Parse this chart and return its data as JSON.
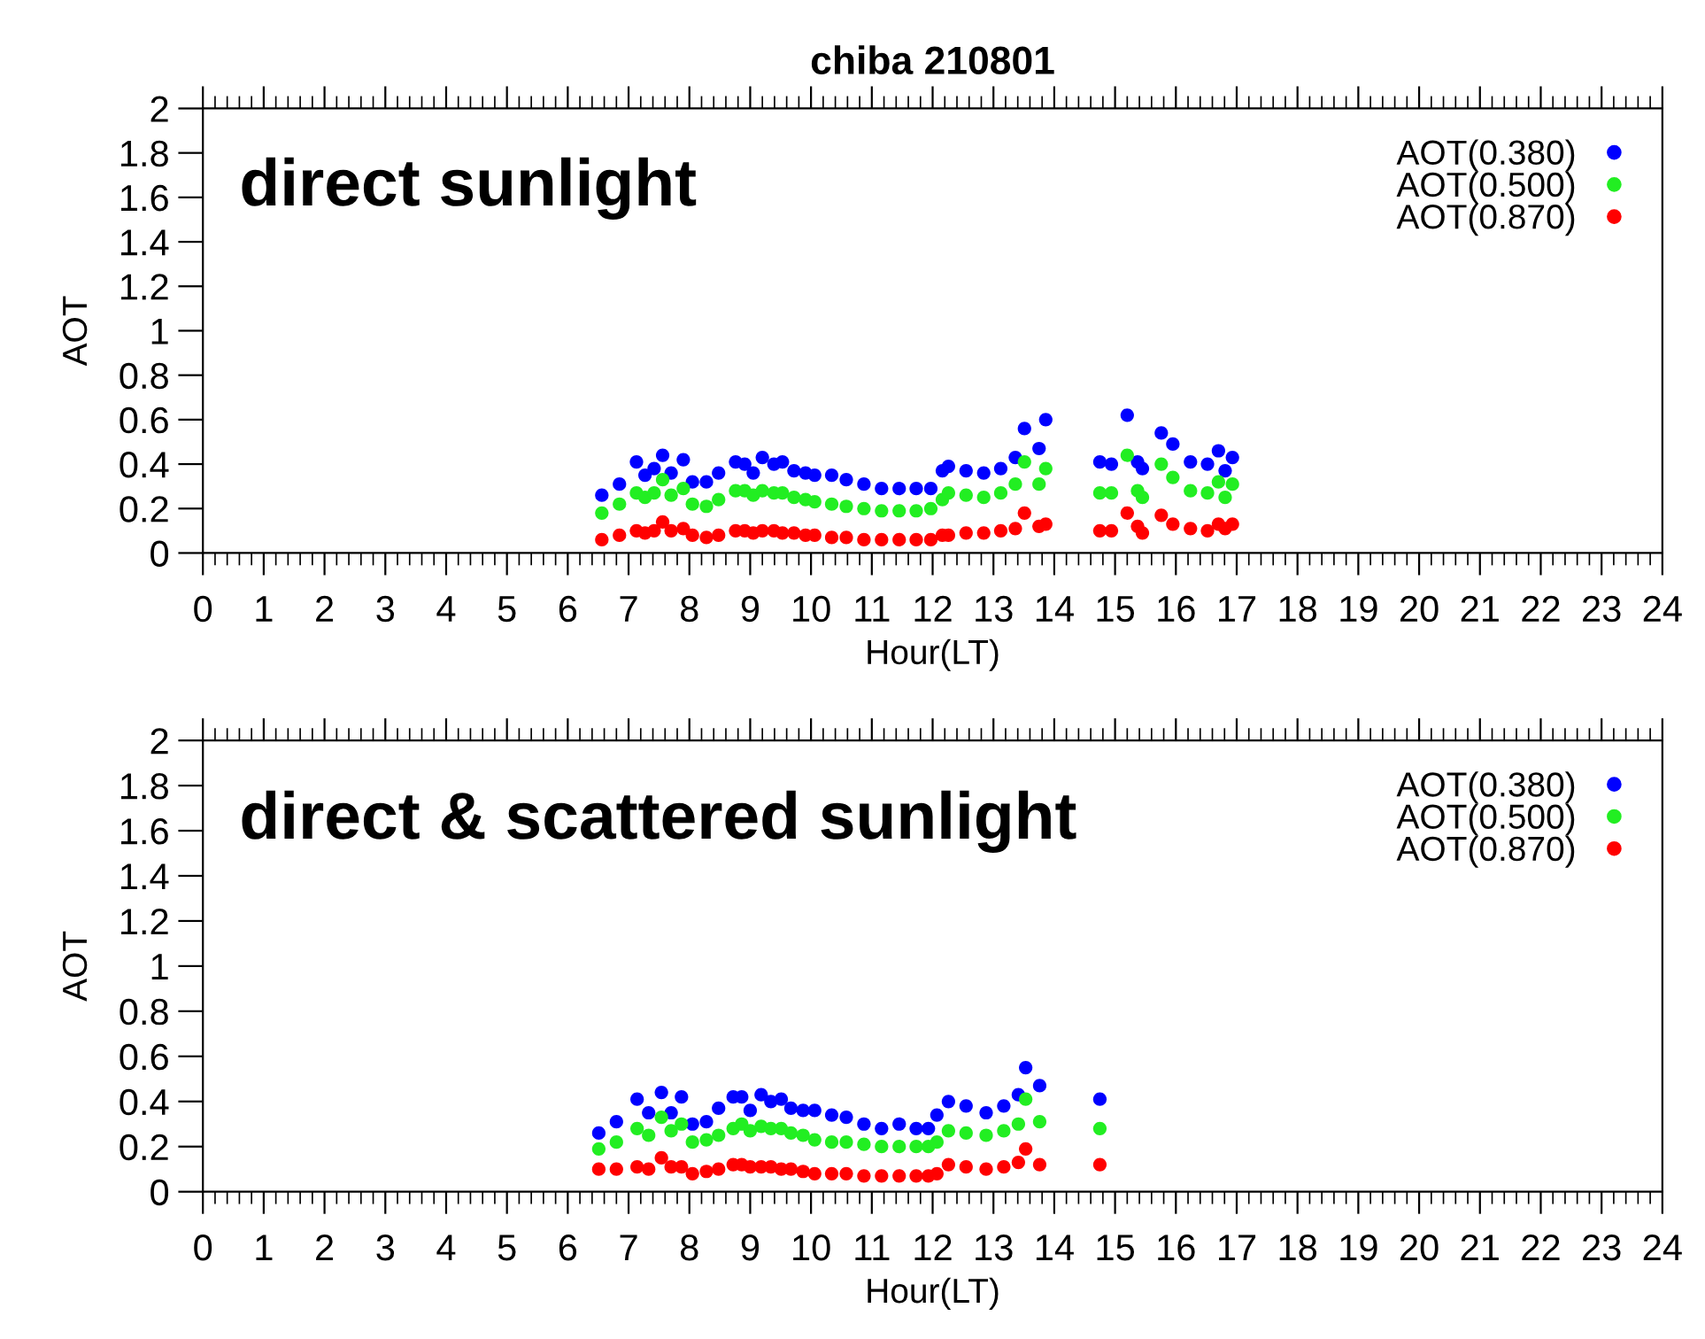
{
  "chart_data": [
    {
      "type": "scatter",
      "title": "chiba 210801",
      "xlabel": "Hour(LT)",
      "ylabel": "AOT",
      "annotations": [
        "direct sunlight"
      ],
      "x": [
        6.56,
        6.85,
        7.13,
        7.27,
        7.42,
        7.56,
        7.7,
        7.9,
        8.05,
        8.28,
        8.48,
        8.76,
        8.91,
        9.05,
        9.2,
        9.39,
        9.53,
        9.72,
        9.91,
        10.06,
        10.34,
        10.58,
        10.87,
        11.16,
        11.45,
        11.73,
        11.97,
        12.16,
        12.26,
        12.55,
        12.84,
        13.12,
        13.36,
        13.51,
        13.75,
        13.86,
        14.75,
        14.94,
        15.2,
        15.37,
        15.45,
        15.76,
        15.95,
        16.24,
        16.52,
        16.7,
        16.81,
        16.93
      ],
      "series": [
        {
          "name": "AOT(0.380)",
          "color": "#0000ff",
          "values": [
            0.26,
            0.31,
            0.41,
            0.35,
            0.38,
            0.44,
            0.36,
            0.42,
            0.32,
            0.32,
            0.36,
            0.41,
            0.4,
            0.36,
            0.43,
            0.4,
            0.41,
            0.37,
            0.36,
            0.35,
            0.35,
            0.33,
            0.31,
            0.29,
            0.29,
            0.29,
            0.29,
            0.37,
            0.39,
            0.37,
            0.36,
            0.38,
            0.43,
            0.56,
            0.47,
            0.6,
            0.41,
            0.4,
            0.62,
            0.41,
            0.38,
            0.54,
            0.49,
            0.41,
            0.4,
            0.46,
            0.37,
            0.43
          ]
        },
        {
          "name": "AOT(0.500)",
          "color": "#22ee22",
          "values": [
            0.18,
            0.22,
            0.27,
            0.25,
            0.27,
            0.33,
            0.26,
            0.29,
            0.22,
            0.21,
            0.24,
            0.28,
            0.28,
            0.26,
            0.28,
            0.27,
            0.27,
            0.25,
            0.24,
            0.23,
            0.22,
            0.21,
            0.2,
            0.19,
            0.19,
            0.19,
            0.2,
            0.24,
            0.27,
            0.26,
            0.25,
            0.27,
            0.31,
            0.41,
            0.31,
            0.38,
            0.27,
            0.27,
            0.44,
            0.28,
            0.25,
            0.4,
            0.34,
            0.28,
            0.27,
            0.32,
            0.25,
            0.31
          ]
        },
        {
          "name": "AOT(0.870)",
          "color": "#ff0000",
          "values": [
            0.06,
            0.08,
            0.1,
            0.09,
            0.1,
            0.14,
            0.1,
            0.11,
            0.08,
            0.07,
            0.08,
            0.1,
            0.1,
            0.09,
            0.1,
            0.1,
            0.09,
            0.09,
            0.08,
            0.08,
            0.07,
            0.07,
            0.06,
            0.06,
            0.06,
            0.06,
            0.06,
            0.08,
            0.08,
            0.09,
            0.09,
            0.1,
            0.11,
            0.18,
            0.12,
            0.13,
            0.1,
            0.1,
            0.18,
            0.12,
            0.09,
            0.17,
            0.13,
            0.11,
            0.1,
            0.13,
            0.11,
            0.13
          ]
        }
      ],
      "xlim": [
        0,
        24
      ],
      "xticks": [
        0,
        1,
        2,
        3,
        4,
        5,
        6,
        7,
        8,
        9,
        10,
        11,
        12,
        13,
        14,
        15,
        16,
        17,
        18,
        19,
        20,
        21,
        22,
        23,
        24
      ],
      "ylim": [
        0,
        2
      ],
      "yticks": [
        0,
        0.2,
        0.4,
        0.6,
        0.8,
        1,
        1.2,
        1.4,
        1.6,
        1.8,
        2
      ],
      "marker": "circle",
      "legend": "top right",
      "grid": false
    },
    {
      "type": "scatter",
      "xlabel": "Hour(LT)",
      "ylabel": "AOT",
      "annotations": [
        "direct & scattered sunlight"
      ],
      "x": [
        6.51,
        6.8,
        7.14,
        7.33,
        7.54,
        7.7,
        7.87,
        8.05,
        8.28,
        8.48,
        8.72,
        8.86,
        9.0,
        9.18,
        9.34,
        9.51,
        9.67,
        9.87,
        10.06,
        10.34,
        10.58,
        10.87,
        11.16,
        11.45,
        11.73,
        11.93,
        12.07,
        12.26,
        12.55,
        12.88,
        13.17,
        13.41,
        13.53,
        13.76,
        14.75
      ],
      "series": [
        {
          "name": "AOT(0.380)",
          "color": "#0000ff",
          "values": [
            0.26,
            0.31,
            0.41,
            0.35,
            0.44,
            0.35,
            0.42,
            0.3,
            0.31,
            0.37,
            0.42,
            0.42,
            0.36,
            0.43,
            0.4,
            0.41,
            0.37,
            0.36,
            0.36,
            0.34,
            0.33,
            0.3,
            0.28,
            0.3,
            0.28,
            0.28,
            0.34,
            0.4,
            0.38,
            0.35,
            0.38,
            0.43,
            0.55,
            0.47,
            0.41
          ]
        },
        {
          "name": "AOT(0.500)",
          "color": "#22ee22",
          "values": [
            0.19,
            0.22,
            0.28,
            0.25,
            0.33,
            0.27,
            0.3,
            0.22,
            0.23,
            0.25,
            0.28,
            0.3,
            0.27,
            0.29,
            0.28,
            0.28,
            0.26,
            0.25,
            0.23,
            0.22,
            0.22,
            0.21,
            0.2,
            0.2,
            0.2,
            0.2,
            0.22,
            0.27,
            0.26,
            0.25,
            0.27,
            0.3,
            0.41,
            0.31,
            0.28
          ]
        },
        {
          "name": "AOT(0.870)",
          "color": "#ff0000",
          "values": [
            0.1,
            0.1,
            0.11,
            0.1,
            0.15,
            0.11,
            0.11,
            0.08,
            0.09,
            0.1,
            0.12,
            0.12,
            0.11,
            0.11,
            0.11,
            0.1,
            0.1,
            0.09,
            0.08,
            0.08,
            0.08,
            0.07,
            0.07,
            0.07,
            0.07,
            0.07,
            0.08,
            0.12,
            0.11,
            0.1,
            0.11,
            0.13,
            0.19,
            0.12,
            0.12
          ]
        }
      ],
      "xlim": [
        0,
        24
      ],
      "xticks": [
        0,
        1,
        2,
        3,
        4,
        5,
        6,
        7,
        8,
        9,
        10,
        11,
        12,
        13,
        14,
        15,
        16,
        17,
        18,
        19,
        20,
        21,
        22,
        23,
        24
      ],
      "ylim": [
        0,
        2
      ],
      "yticks": [
        0,
        0.2,
        0.4,
        0.6,
        0.8,
        1,
        1.2,
        1.4,
        1.6,
        1.8,
        2
      ],
      "marker": "circle",
      "legend": "top right",
      "grid": false
    }
  ]
}
